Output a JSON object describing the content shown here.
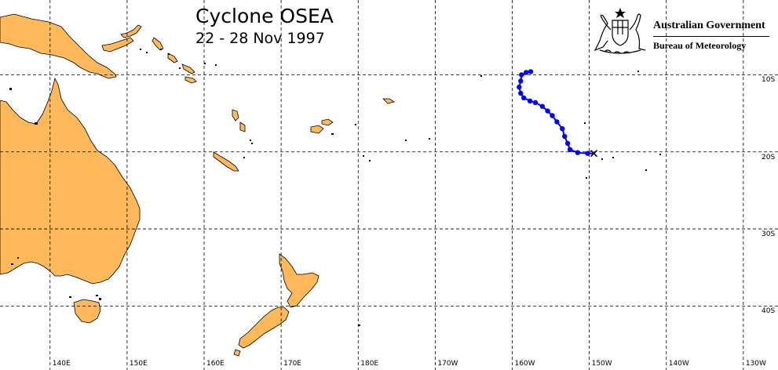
{
  "title": "Cyclone OSEA",
  "subtitle": "22 - 28 Nov 1997",
  "agency": {
    "line1": "Australian Government",
    "line2": "Bureau of Meteorology",
    "emblem_icon": "australian-coat-of-arms-icon"
  },
  "colors": {
    "land": "#FFB85A",
    "coast": "#000000",
    "grid": "#000000",
    "track": "#0000FF",
    "final_position": "#000000",
    "background": "#FFFFFF"
  },
  "map_extent": {
    "lon_min_east": 133.5,
    "lon_max_east": 234.5,
    "lat_max": -0.3,
    "lat_min": -48.3
  },
  "longitude_labels": [
    {
      "label": "140E",
      "lon": 140
    },
    {
      "label": "150E",
      "lon": 150
    },
    {
      "label": "160E",
      "lon": 160
    },
    {
      "label": "170E",
      "lon": 170
    },
    {
      "label": "180E",
      "lon": 180
    },
    {
      "label": "170W",
      "lon": 190
    },
    {
      "label": "160W",
      "lon": 200
    },
    {
      "label": "150W",
      "lon": 210
    },
    {
      "label": "140W",
      "lon": 220
    },
    {
      "label": "130W",
      "lon": 230
    }
  ],
  "latitude_labels": [
    {
      "label": "10S",
      "lat": -10
    },
    {
      "label": "20S",
      "lat": -20
    },
    {
      "label": "30S",
      "lat": -30
    },
    {
      "label": "40S",
      "lat": -40
    }
  ],
  "track": {
    "name": "OSEA",
    "points": [
      {
        "lon": 202.4,
        "lat": -9.6
      },
      {
        "lon": 201.8,
        "lat": -9.7
      },
      {
        "lon": 201.2,
        "lat": -10.0
      },
      {
        "lon": 201.1,
        "lat": -10.8
      },
      {
        "lon": 200.9,
        "lat": -11.6
      },
      {
        "lon": 201.1,
        "lat": -12.4
      },
      {
        "lon": 201.5,
        "lat": -13.0
      },
      {
        "lon": 202.3,
        "lat": -13.4
      },
      {
        "lon": 203.0,
        "lat": -13.6
      },
      {
        "lon": 203.9,
        "lat": -14.1
      },
      {
        "lon": 204.6,
        "lat": -14.7
      },
      {
        "lon": 205.2,
        "lat": -15.3
      },
      {
        "lon": 205.8,
        "lat": -16.1
      },
      {
        "lon": 206.5,
        "lat": -17.0
      },
      {
        "lon": 206.8,
        "lat": -18.0
      },
      {
        "lon": 207.2,
        "lat": -18.9
      },
      {
        "lon": 207.5,
        "lat": -19.7
      },
      {
        "lon": 208.5,
        "lat": -20.1
      },
      {
        "lon": 209.8,
        "lat": -20.2
      },
      {
        "lon": 210.6,
        "lat": -20.2
      }
    ]
  }
}
